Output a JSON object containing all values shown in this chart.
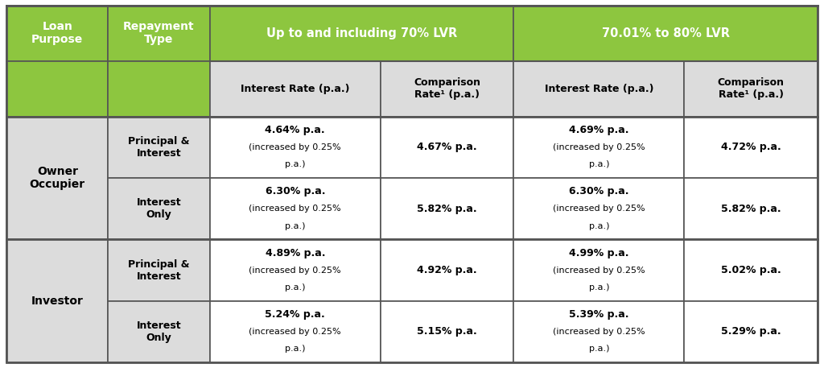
{
  "header_green": "#8DC63F",
  "header_text_color": "#FFFFFF",
  "light_gray": "#DCDCDC",
  "white": "#FFFFFF",
  "border_dark": "#555555",
  "border_light": "#888888",
  "col_groups": [
    "Up to and including 70% LVR",
    "70.01% to 80% LVR"
  ],
  "col_headers": [
    "Interest Rate (p.a.)",
    "Comparison\nRate¹ (p.a.)",
    "Interest Rate (p.a.)",
    "Comparison\nRate¹ (p.a.)"
  ],
  "loan_groups": [
    "Owner\nOccupier",
    "Investor"
  ],
  "row_headers_repayment": [
    "Principal &\nInterest",
    "Interest\nOnly",
    "Principal &\nInterest",
    "Interest\nOnly"
  ],
  "cells": [
    [
      "4.64% p.a.",
      "(increased by 0.25%",
      "p.a.)",
      "4.67% p.a.",
      "4.69% p.a.",
      "(increased by 0.25%",
      "p.a.)",
      "4.72% p.a."
    ],
    [
      "6.30% p.a.",
      "(increased by 0.25%",
      "p.a.)",
      "5.82% p.a.",
      "6.30% p.a.",
      "(increased by 0.25%",
      "p.a.)",
      "5.82% p.a."
    ],
    [
      "4.89% p.a.",
      "(increased by 0.25%",
      "p.a.)",
      "4.92% p.a.",
      "4.99% p.a.",
      "(increased by 0.25%",
      "p.a.)",
      "5.02% p.a."
    ],
    [
      "5.24% p.a.",
      "(increased by 0.25%",
      "p.a.)",
      "5.15% p.a.",
      "5.39% p.a.",
      "(increased by 0.25%",
      "p.a.)",
      "5.29% p.a."
    ]
  ],
  "figsize": [
    10.24,
    4.57
  ]
}
